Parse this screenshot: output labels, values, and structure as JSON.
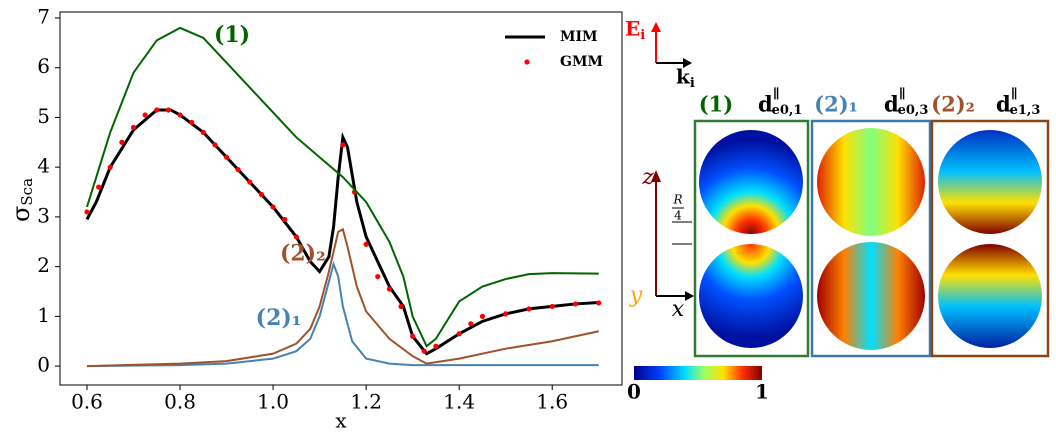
{
  "chart_data": {
    "type": "line",
    "x_label": "x",
    "y_label": {
      "symbol": "σ",
      "subscript": "Sca"
    },
    "xlim": [
      0.542,
      1.75
    ],
    "ylim": [
      -0.38,
      7.12
    ],
    "xticks": [
      0.6,
      0.8,
      {
        "value": 1.0,
        "label": "1.0"
      },
      1.2,
      1.4,
      1.6
    ],
    "yticks": [
      0,
      1,
      2,
      3,
      4,
      5,
      6,
      7
    ],
    "legend": "upper right",
    "series": [
      {
        "name": "MIM",
        "color": "#000000",
        "style": "line",
        "in_legend": true,
        "x": [
          0.6,
          0.62,
          0.65,
          0.7,
          0.75,
          0.78,
          0.8,
          0.85,
          0.9,
          0.95,
          1.0,
          1.05,
          1.08,
          1.1,
          1.12,
          1.13,
          1.14,
          1.15,
          1.16,
          1.18,
          1.2,
          1.25,
          1.28,
          1.3,
          1.33,
          1.35,
          1.4,
          1.45,
          1.5,
          1.55,
          1.6,
          1.65,
          1.7
        ],
        "values": [
          2.95,
          3.3,
          4.0,
          4.75,
          5.15,
          5.15,
          5.05,
          4.7,
          4.2,
          3.7,
          3.2,
          2.6,
          2.1,
          1.9,
          2.2,
          2.8,
          3.8,
          4.6,
          4.4,
          3.3,
          2.6,
          1.6,
          1.2,
          0.6,
          0.25,
          0.35,
          0.65,
          0.9,
          1.05,
          1.15,
          1.2,
          1.25,
          1.28
        ]
      },
      {
        "name": "GMM",
        "color": "#ff0000",
        "style": "dots",
        "in_legend": true,
        "x": [
          0.6,
          0.625,
          0.65,
          0.675,
          0.7,
          0.725,
          0.75,
          0.775,
          0.8,
          0.825,
          0.85,
          0.875,
          0.9,
          0.925,
          0.95,
          0.975,
          1.0,
          1.025,
          1.05,
          1.15,
          1.175,
          1.2,
          1.225,
          1.25,
          1.275,
          1.3,
          1.325,
          1.35,
          1.4,
          1.425,
          1.45,
          1.5,
          1.55,
          1.6,
          1.65,
          1.7
        ],
        "values": [
          3.1,
          3.6,
          4.0,
          4.5,
          4.8,
          5.05,
          5.15,
          5.15,
          5.05,
          4.9,
          4.7,
          4.45,
          4.2,
          3.95,
          3.7,
          3.45,
          3.2,
          2.95,
          2.6,
          4.45,
          3.5,
          2.45,
          1.8,
          1.55,
          1.2,
          0.6,
          0.3,
          0.4,
          0.65,
          0.85,
          1.0,
          1.05,
          1.15,
          1.2,
          1.25,
          1.27
        ]
      },
      {
        "name": "(1)",
        "color": "#006400",
        "style": "line",
        "in_legend": false,
        "x": [
          0.6,
          0.65,
          0.7,
          0.75,
          0.8,
          0.85,
          0.9,
          0.95,
          1.0,
          1.05,
          1.1,
          1.15,
          1.2,
          1.25,
          1.28,
          1.3,
          1.33,
          1.35,
          1.4,
          1.45,
          1.5,
          1.55,
          1.6,
          1.7
        ],
        "values": [
          3.2,
          4.7,
          5.9,
          6.55,
          6.8,
          6.6,
          6.1,
          5.6,
          5.1,
          4.6,
          4.2,
          3.8,
          3.3,
          2.5,
          1.8,
          1.0,
          0.4,
          0.55,
          1.3,
          1.6,
          1.75,
          1.85,
          1.87,
          1.86
        ]
      },
      {
        "name": "(2)₁",
        "color": "#4682b4",
        "style": "line",
        "in_legend": false,
        "x": [
          0.6,
          0.8,
          0.9,
          1.0,
          1.05,
          1.08,
          1.1,
          1.12,
          1.13,
          1.14,
          1.15,
          1.17,
          1.2,
          1.25,
          1.3,
          1.7
        ],
        "values": [
          0,
          0.02,
          0.05,
          0.15,
          0.3,
          0.55,
          1.0,
          1.7,
          2.05,
          1.8,
          1.2,
          0.5,
          0.15,
          0.05,
          0.02,
          0.02
        ]
      },
      {
        "name": "(2)₂",
        "color": "#a0522d",
        "style": "line",
        "in_legend": false,
        "x": [
          0.6,
          0.8,
          0.9,
          1.0,
          1.05,
          1.08,
          1.1,
          1.12,
          1.14,
          1.15,
          1.16,
          1.18,
          1.2,
          1.25,
          1.3,
          1.33,
          1.4,
          1.5,
          1.6,
          1.7
        ],
        "values": [
          0,
          0.05,
          0.1,
          0.25,
          0.45,
          0.75,
          1.2,
          1.9,
          2.7,
          2.75,
          2.4,
          1.6,
          1.1,
          0.55,
          0.2,
          0.05,
          0.15,
          0.35,
          0.5,
          0.7
        ]
      }
    ]
  },
  "panel": {
    "field": "E",
    "field_sub": "i",
    "wave": "k",
    "wave_sub": "i",
    "columns": [
      {
        "mode": "(1)",
        "mode_color": "#006400",
        "vector": "d",
        "vector_sup": "∥",
        "vector_sub": "e0,1"
      },
      {
        "mode": "(2)₁",
        "mode_color": "#4682b4",
        "vector": "d",
        "vector_sup": "∥",
        "vector_sub": "e0,3"
      },
      {
        "mode": "(2)₂",
        "mode_color": "#a0522d",
        "vector": "d",
        "vector_sup": "∥",
        "vector_sub": "e1,3"
      }
    ],
    "axis_z": "z",
    "axis_y": "y",
    "axis_x": "x",
    "scale_num": "R",
    "scale_den": "4",
    "colorbar_ticks": [
      0,
      1
    ]
  }
}
